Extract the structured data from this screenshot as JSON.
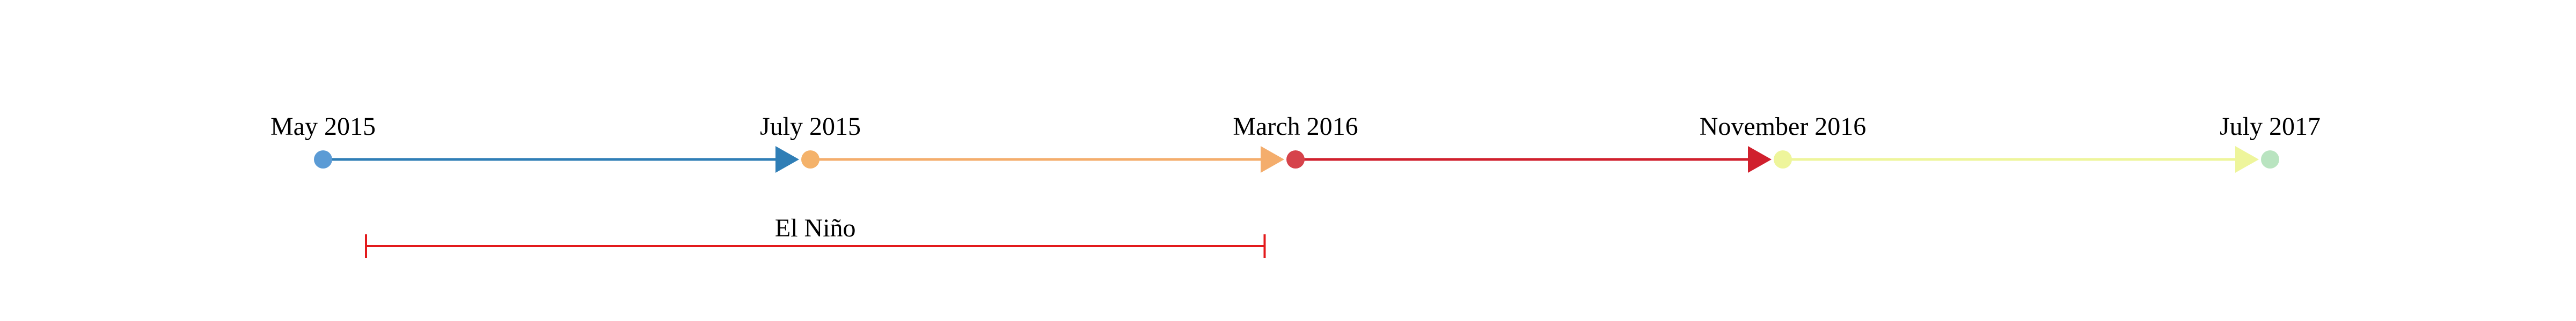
{
  "timeline": {
    "milestones": [
      {
        "label": "May 2015",
        "color": "#5b9bd5"
      },
      {
        "label": "July 2015",
        "color": "#f4b26a"
      },
      {
        "label": "March 2016",
        "color": "#d6434b"
      },
      {
        "label": "November 2016",
        "color": "#eef59b"
      },
      {
        "label": "July 2017",
        "color": "#b9e4c0"
      }
    ],
    "segments": [
      {
        "from": "May 2015",
        "to": "July 2015",
        "color": "#2f7eb6"
      },
      {
        "from": "July 2015",
        "to": "March 2016",
        "color": "#f4ad6c"
      },
      {
        "from": "March 2016",
        "to": "November 2016",
        "color": "#d0202d"
      },
      {
        "from": "November 2016",
        "to": "July 2017",
        "color": "#eef59b"
      }
    ],
    "periods": [
      {
        "label": "El Niño",
        "start": "May 2015",
        "end": "May 2016",
        "color": "#e31a1c"
      }
    ]
  }
}
